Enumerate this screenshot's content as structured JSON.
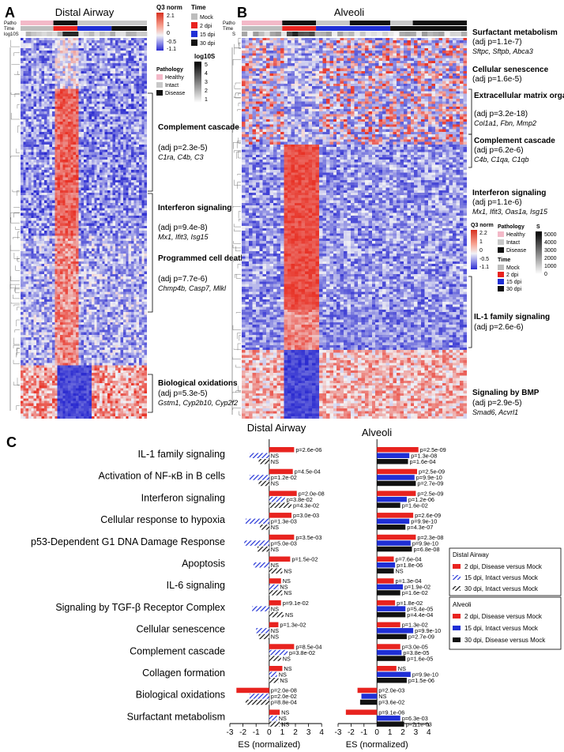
{
  "colors": {
    "hm_high": "#e8402c",
    "hm_mid": "#f2f2f5",
    "hm_low": "#2a2ad0",
    "healthy": "#f3b9c8",
    "intact": "#c8c8c8",
    "disease": "#111111",
    "mock": "#bdbdbd",
    "dpi2": "#e8231f",
    "dpi15": "#1f2fd6",
    "dpi30": "#111111",
    "bar_red": "#e8231f",
    "bar_blue": "#1f2fd6",
    "bar_black": "#111111"
  },
  "panelA": {
    "letter": "A",
    "title": "Distal Airway",
    "row_labels": [
      "Patho",
      "Time",
      "log10S"
    ],
    "legend_q3": {
      "title": "Q3 norm",
      "ticks": [
        "2.1",
        "1",
        "0",
        "-0.5",
        "-1.1"
      ]
    },
    "legend_time": {
      "title": "Time",
      "items": [
        "Mock",
        "2 dpi",
        "15 dpi",
        "30 dpi"
      ]
    },
    "legend_patho": {
      "title": "Pathology",
      "items": [
        "Healthy",
        "Intact",
        "Disease"
      ]
    },
    "legend_log10s": {
      "title": "log10S",
      "ticks": [
        "5",
        "4",
        "3",
        "2",
        "1"
      ]
    },
    "annotations": [
      {
        "title": "Complement cascade",
        "pval": "(adj p=2.3e-5)",
        "genes": "C1ra, C4b, C3"
      },
      {
        "title": "Interferon signaling",
        "pval": "(adj p=9.4e-8)",
        "genes": "Mx1, Ifit3, Isg15"
      },
      {
        "title": "Programmed cell death",
        "pval": "(adj p=7.7e-6)",
        "genes": "Chmp4b, Casp7, Mlkl"
      },
      {
        "title": "Biological oxidations",
        "pval": "(adj p=5.3e-5)",
        "genes": "Gstm1, Cyp2b10, Cyp2f2"
      }
    ]
  },
  "panelB": {
    "letter": "B",
    "title": "Alveoli",
    "row_labels": [
      "Patho",
      "Time",
      "S"
    ],
    "legend_q3": {
      "title": "Q3 norm",
      "ticks": [
        "2.2",
        "1",
        "0",
        "-0.5",
        "-1.1"
      ]
    },
    "legend_patho": {
      "title": "Pathology",
      "items": [
        "Healthy",
        "Intact",
        "Disease"
      ]
    },
    "legend_time": {
      "title": "Time",
      "items": [
        "Mock",
        "2 dpi",
        "15 dpi",
        "30 dpi"
      ]
    },
    "legend_s": {
      "title": "S",
      "ticks": [
        "5000",
        "4000",
        "3000",
        "2000",
        "1000",
        "0"
      ]
    },
    "annotations": [
      {
        "title": "Surfactant metabolism",
        "pval": "(adj p=1.1e-7)",
        "genes": "Sftpc, Sftpb, Abca3"
      },
      {
        "title": "Cellular senescence",
        "pval": "(adj p=1.6e-5)",
        "genes": ""
      },
      {
        "title": "Extracellular matrix organization",
        "pval": "(adj p=3.2e-18)",
        "genes": "Col1a1, Fbn, Mmp2"
      },
      {
        "title": "Complement cascade",
        "pval": "(adj p=6.2e-6)",
        "genes": "C4b, C1qa, C1qb"
      },
      {
        "title": "Interferon signaling",
        "pval": "(adj p=1.1e-6)",
        "genes": "Mx1, Ifit3, Oas1a, Isg15"
      },
      {
        "title": "IL-1 family signaling",
        "pval": "(adj p=2.6e-6)",
        "genes": ""
      },
      {
        "title": "Signaling by BMP",
        "pval": "(adj p=2.9e-5)",
        "genes": "Smad6, Acvrl1"
      }
    ]
  },
  "panelC": {
    "letter": "C",
    "legend_da": {
      "title": "Distal Airway",
      "items": [
        "2 dpi, Disease versus Mock",
        "15 dpi, Intact versus Mock",
        "30 dpi, Intact versus Mock"
      ]
    },
    "legend_alv": {
      "title": "Alveoli",
      "items": [
        "2 dpi, Disease versus Mock",
        "15 dpi, Intact versus Mock",
        "30 dpi, Disease versus Mock"
      ]
    }
  },
  "chart_data": [
    {
      "type": "bar",
      "title": "Distal Airway",
      "orientation": "horizontal",
      "xlabel": "ES (normalized)",
      "xlim": [
        -3,
        4
      ],
      "xticks": [
        "-3",
        "-2",
        "-1",
        "0",
        "1",
        "2",
        "3",
        "4"
      ],
      "categories": [
        "IL-1 family signaling",
        "Activation of NF-κB in B cells",
        "Interferon signaling",
        "Cellular response to hypoxia",
        "p53-Dependent G1 DNA Damage Response",
        "Apoptosis",
        "IL-6 signaling",
        "Signaling by TGF-β Receptor Complex",
        "Cellular senescence",
        "Complement cascade",
        "Collagen formation",
        "Biological oxidations",
        "Surfactant metabolism"
      ],
      "series": [
        {
          "name": "2 dpi, Disease versus Mock",
          "values": [
            1.9,
            1.8,
            2.1,
            1.7,
            1.9,
            1.6,
            0.9,
            0.9,
            0.7,
            1.9,
            1.0,
            -2.5,
            0.8
          ],
          "labels": [
            "p=2.6e-06",
            "p=4.5e-04",
            "p=2.0e-08",
            "p=3.0e-03",
            "p=3.5e-03",
            "p=1.5e-02",
            "NS",
            "p=9.1e-02",
            "p=1.3e-02",
            "p=8.5e-04",
            "NS",
            "p=2.0e-08",
            "NS"
          ]
        },
        {
          "name": "15 dpi, Intact versus Mock",
          "values": [
            -1.5,
            -1.5,
            1.2,
            -1.8,
            -1.9,
            -1.2,
            0.7,
            -1.3,
            -1.0,
            1.4,
            0.6,
            -1.5,
            0.6
          ],
          "labels": [
            "NS",
            "p=1.2e-02",
            "p=3.8e-02",
            "p=1.3e-03",
            "p=5.0e-03",
            "NS",
            "NS",
            "NS",
            "NS",
            "p=3.8e-02",
            "NS",
            "p=2.0e-02",
            "NS"
          ]
        },
        {
          "name": "30 dpi, Intact versus Mock",
          "values": [
            -0.8,
            -0.8,
            1.7,
            -0.7,
            -0.9,
            1.0,
            1.0,
            1.1,
            -0.8,
            0.9,
            0.7,
            -1.8,
            0.8
          ],
          "labels": [
            "NS",
            "NS",
            "p=4.3e-02",
            "NS",
            "NS",
            "NS",
            "NS",
            "NS",
            "NS",
            "NS",
            "NS",
            "p=8.8e-04",
            "NS"
          ]
        }
      ]
    },
    {
      "type": "bar",
      "title": "Alveoli",
      "orientation": "horizontal",
      "xlabel": "ES (normalized)",
      "xlim": [
        -3,
        4
      ],
      "xticks": [
        "-3",
        "-2",
        "-1",
        "0",
        "1",
        "2",
        "3",
        "4"
      ],
      "categories": [
        "IL-1 family signaling",
        "Activation of NF-κB in B cells",
        "Interferon signaling",
        "Cellular response to hypoxia",
        "p53-Dependent G1 DNA Damage Response",
        "Apoptosis",
        "IL-6 signaling",
        "Signaling by TGF-β Receptor Complex",
        "Cellular senescence",
        "Complement cascade",
        "Collagen formation",
        "Biological oxidations",
        "Surfactant metabolism"
      ],
      "series": [
        {
          "name": "2 dpi, Disease versus Mock",
          "values": [
            3.2,
            3.1,
            3.0,
            2.8,
            3.0,
            1.3,
            1.3,
            1.4,
            1.8,
            1.8,
            1.5,
            -1.5,
            -2.4
          ],
          "labels": [
            "p=2.5e-09",
            "p=2.5e-09",
            "p=2.5e-09",
            "p=2.6e-09",
            "p=2.3e-08",
            "p=7.6e-04",
            "p=1.3e-04",
            "p=1.8e-02",
            "p=1.3e-02",
            "p=3.0e-05",
            "NS",
            "p=2.0e-03",
            "p=9.1e-06"
          ]
        },
        {
          "name": "15 dpi, Intact versus Mock",
          "values": [
            2.5,
            2.9,
            2.3,
            2.5,
            2.6,
            1.4,
            2.0,
            2.2,
            2.8,
            1.9,
            2.6,
            -1.2,
            1.8
          ],
          "labels": [
            "p=1.3e-08",
            "p=9.9e-10",
            "p=1.2e-06",
            "p=9.9e-10",
            "p=9.9e-10",
            "p=1.8e-06",
            "p=1.9e-02",
            "p=5.4e-05",
            "p=9.9e-10",
            "p=3.8e-05",
            "p=9.9e-10",
            "NS",
            "p=6.3e-03"
          ]
        },
        {
          "name": "30 dpi, Disease versus Mock",
          "values": [
            2.4,
            3.0,
            1.8,
            2.2,
            2.7,
            1.3,
            1.8,
            2.2,
            2.3,
            2.2,
            2.3,
            -1.3,
            2.1
          ],
          "labels": [
            "p=1.6e-04",
            "p=2.7e-09",
            "p=1.6e-02",
            "p=4.3e-07",
            "p=6.8e-08",
            "NS",
            "p=1.6e-02",
            "p=4.4e-04",
            "p=2.7e-09",
            "p=1.6e-05",
            "p=1.5e-06",
            "p=3.6e-02",
            "p=2.1e-03"
          ]
        }
      ]
    }
  ]
}
